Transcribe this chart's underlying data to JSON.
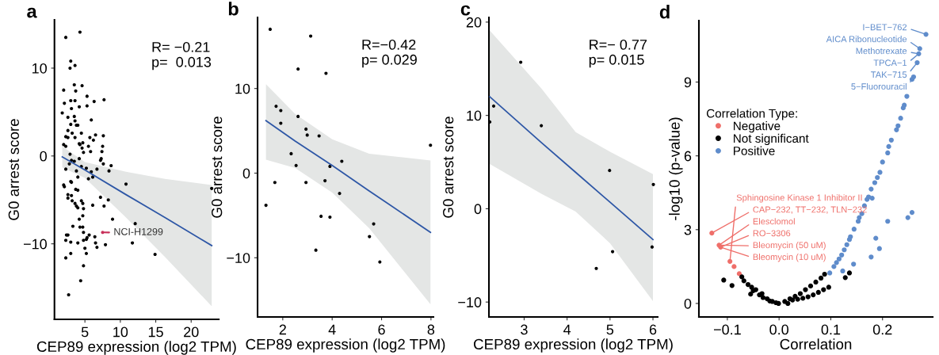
{
  "chart_data": [
    {
      "type": "scatter",
      "title": "a",
      "xlabel": "CEP89 expression (log2 TPM)",
      "ylabel": "G0 arrest score",
      "xlim": [
        0.7,
        23.9
      ],
      "ylim": [
        -18.6,
        15.5
      ],
      "xticks": [
        5,
        10,
        15,
        20
      ],
      "yticks": [
        -10,
        0,
        10
      ],
      "grid": false,
      "marker": "circle",
      "series": [
        {
          "color": "#000000",
          "x": [
            2.3,
            4.3,
            3.0,
            2.9,
            3.6,
            2.0,
            2.1,
            1.8,
            3.5,
            4.6,
            3.7,
            3.0,
            3.6,
            4.2,
            2.6,
            2.3,
            3.1,
            3.5,
            3.6,
            3.8,
            3.0,
            3.2,
            3.6,
            2.6,
            2.6,
            4.0,
            4.5,
            4.7,
            4.2,
            4.3,
            4.6,
            4.8,
            5.3,
            5.3,
            5.9,
            5.7,
            5.5,
            5.8,
            6.3,
            6.5,
            6.2,
            7.7,
            7.6,
            7.5,
            7.4,
            7.3,
            7.2,
            2.0,
            2.3,
            2.3,
            2.9,
            3.1,
            2.8,
            3.5,
            4.2,
            4.5,
            3.8,
            5.2,
            5.5,
            5.9,
            6.1,
            6.7,
            7.6,
            8.7,
            8.4,
            10.8,
            2.0,
            2.1,
            3.0,
            3.1,
            4.0,
            3.7,
            4.0,
            2.6,
            2.6,
            3.1,
            3.2,
            3.6,
            3.8,
            4.0,
            4.5,
            4.7,
            4.8,
            6.1,
            7.2,
            7.7,
            8.3,
            8.9,
            12.1,
            4.7,
            4.2,
            3.3,
            4.3,
            4.7,
            4.8,
            2.6,
            3.0,
            2.3,
            2.4,
            4.0,
            4.8,
            5.2,
            5.3,
            5.6,
            6.4,
            6.5,
            6.7,
            5.0,
            5.2,
            3.0,
            2.3,
            4.8,
            4.4,
            2.7,
            7.9,
            11.7,
            14.9,
            22.9
          ],
          "values": [
            13.5,
            14.1,
            10.8,
            10.0,
            10.3,
            7.5,
            6.0,
            4.9,
            8.1,
            8.0,
            7.4,
            6.3,
            6.3,
            5.6,
            4.4,
            2.2,
            5.4,
            4.5,
            4.0,
            3.5,
            3.6,
            2.6,
            2.1,
            2.9,
            2.1,
            3.5,
            2.6,
            1.5,
            1.4,
            1.3,
            0.9,
            0.4,
            6.8,
            5.7,
            4.1,
            2.1,
            1.1,
            0.5,
            6.2,
            2.4,
            1.8,
            6.4,
            2.3,
            1.1,
            0.5,
            -0.3,
            -0.5,
            1.3,
            1.1,
            -1.5,
            0.2,
            -0.5,
            -0.9,
            -0.6,
            -0.3,
            -1.2,
            -1.7,
            -1.4,
            -2.6,
            -1.8,
            -2.4,
            -1.5,
            -0.9,
            -1.1,
            -1.7,
            -3.2,
            -3.3,
            -3.5,
            -2.9,
            -3.0,
            -2.4,
            -3.8,
            -3.9,
            -4.4,
            -4.8,
            -4.5,
            -5.1,
            -5.4,
            -5.7,
            -5.9,
            -5.1,
            -5.4,
            -6.0,
            -5.6,
            -4.7,
            -5.7,
            -5.0,
            -7.2,
            -7.7,
            -6.8,
            -7.2,
            -8.0,
            -8.1,
            -8.1,
            -8.7,
            -9.0,
            -9.8,
            -9.6,
            -9.0,
            -9.9,
            -9.6,
            -9.5,
            -9.3,
            -9.0,
            -9.2,
            -9.9,
            -10.4,
            -10.5,
            -11.1,
            -11.1,
            -11.6,
            -12.5,
            -14.2,
            -15.8,
            -10.1,
            -9.9,
            -11.2,
            -3.7
          ]
        },
        {
          "color": "#c8305a",
          "x": [
            7.5
          ],
          "values": [
            -8.7
          ]
        },
        {
          "type": "line",
          "marker": "none",
          "color": "#2e57a6",
          "x": [
            1.8,
            5.0,
            10.8,
            16.3,
            22.9
          ],
          "values": [
            -0.1,
            -1.6,
            -4.4,
            -7.0,
            -10.2
          ],
          "upper": [
            1.1,
            -0.7,
            -1.8,
            -2.6,
            -3.3
          ],
          "lower": [
            -1.3,
            -2.5,
            -7.0,
            -11.5,
            -17.1
          ]
        }
      ],
      "annotations": [
        "R= −0.21",
        "p=  0.013",
        {
          "text": "NCI-H1299",
          "x": 7.5,
          "y": -8.7
        }
      ]
    },
    {
      "type": "scatter",
      "title": "b",
      "xlabel": "CEP89 expression (log2 TPM)",
      "ylabel": "G0 arrest score",
      "xlim": [
        0.98,
        8.1
      ],
      "ylim": [
        -17.0,
        18.4
      ],
      "xticks": [
        2,
        4,
        6,
        8
      ],
      "yticks": [
        -10,
        0,
        10
      ],
      "grid": false,
      "marker": "circle",
      "series": [
        {
          "color": "#000000",
          "x": [
            1.49,
            3.13,
            2.62,
            3.75,
            1.73,
            1.92,
            1.92,
            2.62,
            2.94,
            2.99,
            3.47,
            2.34,
            2.54,
            3.91,
            4.39,
            1.68,
            2.94,
            3.71,
            4.3,
            1.32,
            3.55,
            3.91,
            5.68,
            5.51,
            3.34,
            5.93,
            7.98
          ],
          "values": [
            17.0,
            16.2,
            12.3,
            11.8,
            7.9,
            7.4,
            5.9,
            6.7,
            5.2,
            4.5,
            4.4,
            2.3,
            0.9,
            0.8,
            1.4,
            -1.1,
            -1.1,
            -0.9,
            -2.4,
            -3.8,
            -5.1,
            -5.2,
            -6.0,
            -7.5,
            -9.1,
            -10.5,
            3.3
          ]
        },
        {
          "type": "line",
          "marker": "none",
          "color": "#2e57a6",
          "x": [
            1.32,
            2.5,
            4.0,
            5.5,
            7.98
          ],
          "values": [
            6.2,
            3.8,
            0.9,
            -2.1,
            -7.0
          ],
          "upper": [
            10.5,
            7.0,
            4.0,
            2.3,
            1.5
          ],
          "lower": [
            1.6,
            0.6,
            -2.3,
            -6.5,
            -15.5
          ]
        }
      ],
      "annotations": [
        "R=−0.42",
        "p= 0.029"
      ]
    },
    {
      "type": "scatter",
      "title": "c",
      "xlabel": "CEP89 expression (log2 TPM)",
      "ylabel": "G0 arrest score",
      "xlim": [
        2.18,
        6.11
      ],
      "ylim": [
        -11.6,
        20.5
      ],
      "xticks": [
        3,
        4,
        5,
        6
      ],
      "yticks": [
        -10,
        0,
        10,
        20
      ],
      "grid": false,
      "marker": "circle",
      "series": [
        {
          "color": "#000000",
          "x": [
            2.2,
            2.29,
            2.92,
            3.4,
            4.99,
            6.01,
            5.06,
            4.68,
            5.98
          ],
          "values": [
            9.3,
            11.0,
            15.7,
            8.9,
            4.1,
            2.6,
            -4.6,
            -6.4,
            -4.1
          ]
        },
        {
          "type": "line",
          "marker": "none",
          "color": "#2e57a6",
          "x": [
            2.2,
            3.4,
            4.2,
            5.0,
            6.0
          ],
          "values": [
            12.0,
            7.1,
            3.9,
            0.7,
            -3.3
          ],
          "upper": [
            19.1,
            12.9,
            8.2,
            6.1,
            3.7
          ],
          "lower": [
            4.8,
            1.6,
            -0.3,
            -3.7,
            -9.9
          ]
        }
      ],
      "annotations": [
        "R=− 0.77",
        "p= 0.015"
      ]
    },
    {
      "type": "scatter",
      "title": "d",
      "xlabel": "Correlation",
      "ylabel": "-log10 (p-value)",
      "xlim": [
        -0.155,
        0.297
      ],
      "ylim": [
        -0.55,
        11.5
      ],
      "xticks": [
        {
          "value": -0.1,
          "label": "−0.1"
        },
        {
          "value": 0,
          "label": "0.0"
        },
        0.1,
        0.2
      ],
      "yticks": [
        0,
        3,
        6,
        9
      ],
      "grid": false,
      "marker": "circle",
      "legend": "left",
      "legend_title": "Correlation Type:",
      "series": [
        {
          "name": "Negative",
          "color": "#ef6f6a",
          "x": [
            -0.13,
            -0.116,
            -0.113,
            -0.095,
            -0.087,
            -0.077
          ],
          "values": [
            2.86,
            2.37,
            2.29,
            1.71,
            1.5,
            1.21
          ]
        },
        {
          "name": "Not significant",
          "color": "#000000",
          "x": [
            -0.107,
            -0.091,
            -0.072,
            -0.068,
            -0.055,
            -0.05,
            -0.038,
            -0.031,
            -0.023,
            -0.013,
            -0.001,
            -0.033,
            -0.053,
            -0.06,
            -0.045,
            0.011,
            0.021,
            0.031,
            0.041,
            0.051,
            0.061,
            0.071,
            0.081,
            0.088,
            0.026,
            0.046,
            0.066,
            0.086,
            0.096,
            0.017,
            0.036,
            0.056,
            0.076,
            0.128,
            0.136,
            -0.006,
            -0.018
          ],
          "values": [
            0.95,
            0.73,
            1.08,
            0.92,
            0.38,
            0.52,
            0.35,
            0.24,
            0.19,
            0.08,
            0.0,
            0.4,
            0.66,
            0.77,
            0.56,
            0.08,
            0.19,
            0.29,
            0.4,
            0.56,
            0.71,
            0.87,
            1.03,
            1.19,
            0.14,
            0.21,
            0.35,
            0.56,
            0.66,
            0.0,
            0.17,
            0.27,
            0.45,
            1.05,
            1.24,
            0.03,
            0.1
          ]
        },
        {
          "name": "Positive",
          "color": "#5f8ccb",
          "x": [
            0.098,
            0.111,
            0.121,
            0.131,
            0.138,
            0.145,
            0.153,
            0.16,
            0.165,
            0.173,
            0.178,
            0.185,
            0.195,
            0.2,
            0.21,
            0.217,
            0.227,
            0.235,
            0.24,
            0.247,
            0.267,
            0.26,
            0.257,
            0.27,
            0.272,
            0.284,
            0.212,
            0.19,
            0.155,
            0.136,
            0.126,
            0.116,
            0.106,
            0.18,
            0.17,
            0.242,
            0.23,
            0.123,
            0.144,
            0.178,
            0.187,
            0.194,
            0.21,
            0.249,
            0.257
          ],
          "values": [
            1.24,
            1.66,
            1.97,
            2.39,
            2.71,
            3.02,
            3.34,
            3.65,
            3.97,
            4.33,
            4.65,
            4.91,
            5.33,
            5.75,
            6.12,
            6.64,
            7.06,
            7.53,
            7.95,
            8.42,
            9.79,
            9.21,
            9.11,
            10.15,
            10.36,
            10.94,
            6.38,
            5.12,
            3.49,
            2.6,
            2.18,
            1.81,
            1.5,
            4.28,
            4.23,
            8.06,
            7.22,
            1.32,
            1.6,
            1.89,
            2.65,
            2.23,
            3.34,
            3.49,
            3.7
          ]
        }
      ],
      "annotations": [
        {
          "text": "I−BET−762",
          "x": 0.284,
          "y": 10.94
        },
        {
          "text": "AICA Ribonucleotide",
          "x": 0.272,
          "y": 10.36
        },
        {
          "text": "Methotrexate",
          "x": 0.27,
          "y": 10.15
        },
        {
          "text": "TPCA−1",
          "x": 0.27,
          "y": 10.15
        },
        {
          "text": "TAK−715",
          "x": 0.267,
          "y": 9.79
        },
        {
          "text": "5−Fluorouracil",
          "x": 0.26,
          "y": 9.21
        },
        {
          "text": "CAP−232, TT−232, TLN−232",
          "x": -0.13,
          "y": 2.86
        },
        {
          "text": "Elesclomol",
          "x": -0.116,
          "y": 2.37
        },
        {
          "text": "RO−3306",
          "x": -0.113,
          "y": 2.29
        },
        {
          "text": "Bleomycin (50 uM)",
          "x": -0.116,
          "y": 2.37
        },
        {
          "text": "Bleomycin (10 uM)",
          "x": -0.113,
          "y": 2.29
        },
        {
          "text": "Sphingosine Kinase 1 Inhibitor II",
          "x": -0.095,
          "y": 1.71
        }
      ]
    }
  ]
}
